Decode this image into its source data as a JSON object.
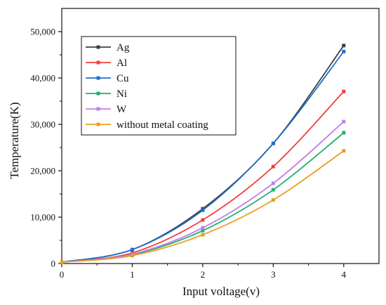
{
  "chart_data": {
    "type": "line",
    "xlabel": "Input voltage(v)",
    "ylabel": "Temperature(K)",
    "xlim": [
      0,
      4.5
    ],
    "ylim": [
      0,
      55000
    ],
    "xticks": [
      0,
      1,
      2,
      3,
      4
    ],
    "xtick_labels": [
      "0",
      "1",
      "2",
      "3",
      "4"
    ],
    "yticks": [
      0,
      10000,
      20000,
      30000,
      40000,
      50000
    ],
    "ytick_labels": [
      "0",
      "10,000",
      "20,000",
      "30,000",
      "40,000",
      "50,000"
    ],
    "grid": false,
    "legend_position": "top-left",
    "x": [
      0,
      1,
      2,
      3,
      4
    ],
    "series": [
      {
        "name": "Ag",
        "color": "#404040",
        "values": [
          300,
          3000,
          11800,
          25900,
          47000
        ]
      },
      {
        "name": "Al",
        "color": "#f04040",
        "values": [
          300,
          2300,
          9400,
          20900,
          37100
        ]
      },
      {
        "name": "Cu",
        "color": "#1f6fd0",
        "values": [
          300,
          3000,
          11500,
          25900,
          45700
        ]
      },
      {
        "name": "Ni",
        "color": "#20b070",
        "values": [
          300,
          1900,
          7100,
          15900,
          28200
        ]
      },
      {
        "name": "W",
        "color": "#c080e8",
        "values": [
          300,
          2000,
          7700,
          17300,
          30600
        ]
      },
      {
        "name": "without metal coating",
        "color": "#e8a020",
        "values": [
          300,
          1700,
          6200,
          13700,
          24300
        ]
      }
    ]
  }
}
